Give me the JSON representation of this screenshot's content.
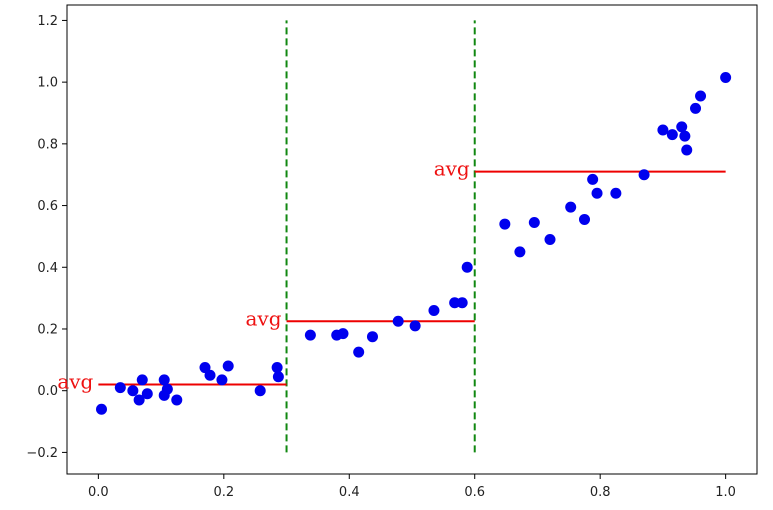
{
  "chart_data": {
    "type": "scatter",
    "title": "",
    "xlabel": "",
    "ylabel": "",
    "xlim": [
      -0.05,
      1.05
    ],
    "ylim": [
      -0.27,
      1.25
    ],
    "x_ticks": [
      0.0,
      0.2,
      0.4,
      0.6,
      0.8,
      1.0
    ],
    "x_tick_labels": [
      "0.0",
      "0.2",
      "0.4",
      "0.6",
      "0.8",
      "1.0"
    ],
    "y_ticks": [
      -0.2,
      0.0,
      0.2,
      0.4,
      0.6,
      0.8,
      1.0,
      1.2
    ],
    "y_tick_labels": [
      "−0.2",
      "0.0",
      "0.2",
      "0.4",
      "0.6",
      "0.8",
      "1.0",
      "1.2"
    ],
    "grid": false,
    "points": {
      "color": "#0000ee",
      "x": [
        0.005,
        0.035,
        0.055,
        0.065,
        0.07,
        0.078,
        0.105,
        0.105,
        0.11,
        0.125,
        0.17,
        0.178,
        0.197,
        0.207,
        0.258,
        0.285,
        0.287,
        0.338,
        0.38,
        0.39,
        0.415,
        0.437,
        0.478,
        0.505,
        0.535,
        0.568,
        0.58,
        0.588,
        0.648,
        0.672,
        0.695,
        0.72,
        0.753,
        0.775,
        0.788,
        0.795,
        0.825,
        0.87,
        0.9,
        0.915,
        0.93,
        0.935,
        0.938,
        0.952,
        0.96,
        1.0
      ],
      "y": [
        -0.06,
        0.01,
        0.0,
        -0.03,
        0.035,
        -0.01,
        0.035,
        -0.015,
        0.005,
        -0.03,
        0.075,
        0.05,
        0.035,
        0.08,
        0.0,
        0.075,
        0.045,
        0.18,
        0.18,
        0.185,
        0.125,
        0.175,
        0.225,
        0.21,
        0.26,
        0.285,
        0.285,
        0.4,
        0.54,
        0.45,
        0.545,
        0.49,
        0.595,
        0.555,
        0.685,
        0.64,
        0.64,
        0.7,
        0.845,
        0.83,
        0.855,
        0.825,
        0.78,
        0.915,
        0.955,
        1.015
      ]
    },
    "averages": [
      {
        "label": "avg",
        "x_start": 0.0,
        "x_end": 0.3,
        "y": 0.02
      },
      {
        "label": "avg",
        "x_start": 0.3,
        "x_end": 0.6,
        "y": 0.225
      },
      {
        "label": "avg",
        "x_start": 0.6,
        "x_end": 1.0,
        "y": 0.71
      }
    ],
    "average_line_color": "#ee0000",
    "splits": [
      {
        "x": 0.3,
        "y_start": -0.2,
        "y_end": 1.2
      },
      {
        "x": 0.6,
        "y_start": -0.2,
        "y_end": 1.2
      }
    ],
    "split_line_color": "#118811"
  }
}
